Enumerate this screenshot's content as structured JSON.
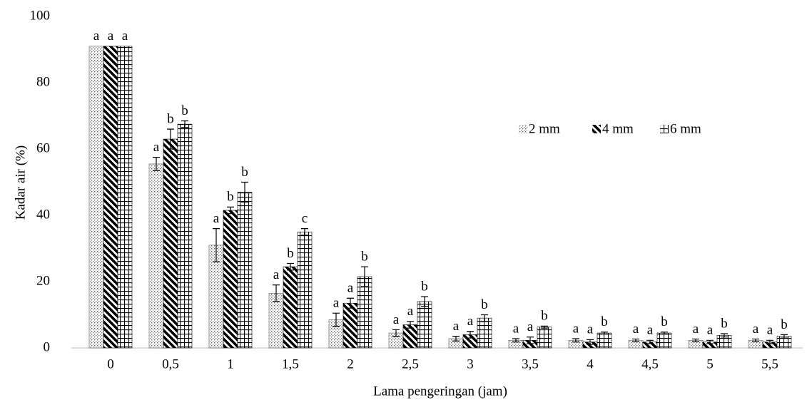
{
  "chart_data": {
    "type": "bar",
    "x_label": "Lama pengeringan (jam)",
    "y_label": "Kadar air (%)",
    "categories": [
      "0",
      "0,5",
      "1",
      "1,5",
      "2",
      "2,5",
      "3",
      "3,5",
      "4",
      "4,5",
      "5",
      "5,5"
    ],
    "series": [
      {
        "name": "2 mm",
        "color": "#555555",
        "pattern": "dots",
        "values": [
          91,
          55.5,
          31,
          16.5,
          8.5,
          4.5,
          2.8,
          2.3,
          2.3,
          2.3,
          2.3,
          2.3
        ],
        "errors": [
          0,
          2,
          5,
          2.5,
          2,
          1,
          0.7,
          0.5,
          0.5,
          0.4,
          0.4,
          0.4
        ],
        "letters": [
          "a",
          "a",
          "a",
          "a",
          "a",
          "a",
          "a",
          "a",
          "a",
          "a",
          "a",
          "a"
        ]
      },
      {
        "name": "4 mm",
        "color": "#000000",
        "pattern": "stripes",
        "values": [
          91,
          63,
          41.5,
          24.5,
          13.5,
          7,
          4,
          2.3,
          1.8,
          1.8,
          1.8,
          1.8
        ],
        "errors": [
          0,
          3,
          1,
          1,
          1.5,
          1,
          1,
          1,
          0.7,
          0.5,
          0.5,
          0.5
        ],
        "letters": [
          "a",
          "b",
          "b",
          "b",
          "a",
          "a",
          "a",
          "a",
          "a",
          "a",
          "a",
          "a"
        ]
      },
      {
        "name": "6 mm",
        "color": "#000000",
        "pattern": "grid",
        "values": [
          91,
          67.5,
          47,
          35,
          21.5,
          14,
          9,
          6.3,
          4.5,
          4.5,
          3.8,
          3.5
        ],
        "errors": [
          0,
          1,
          3,
          1,
          3,
          1.5,
          1,
          0.3,
          0.3,
          0.3,
          0.5,
          0.5
        ],
        "letters": [
          "a",
          "b",
          "b",
          "c",
          "b",
          "b",
          "b",
          "b",
          "b",
          "b",
          "b",
          "b"
        ]
      }
    ],
    "ylim": [
      0,
      100
    ],
    "yticks": [
      0,
      20,
      40,
      60,
      80,
      100
    ],
    "grid": false
  }
}
